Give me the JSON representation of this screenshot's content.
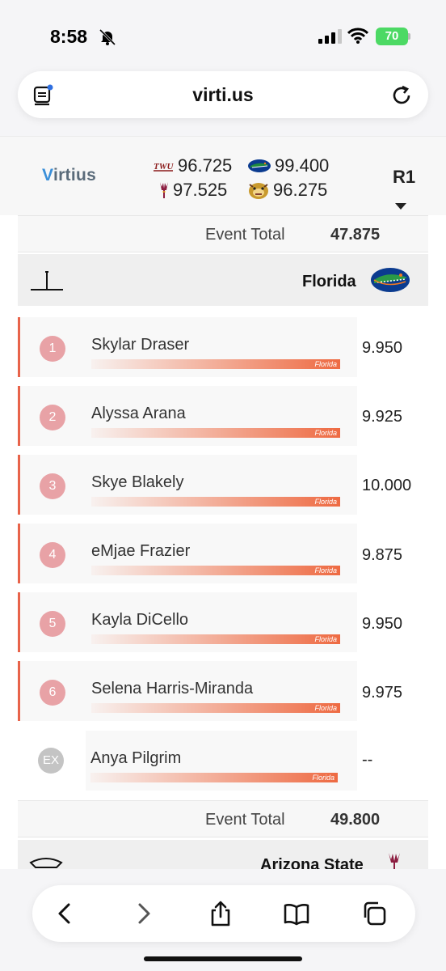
{
  "status": {
    "time": "8:58",
    "battery": "70"
  },
  "browser": {
    "url": "virti.us"
  },
  "scoreboard": {
    "brand_v": "V",
    "brand_rest": "irtius",
    "teams": [
      {
        "logo": "twu-logo",
        "score": "96.725"
      },
      {
        "logo": "florida-gator-logo",
        "score": "99.400"
      },
      {
        "logo": "arizona-state-pitchfork-logo",
        "score": "97.525"
      },
      {
        "logo": "bulldog-logo",
        "score": "96.275"
      }
    ],
    "round": "R1"
  },
  "event_total_top": {
    "label": "Event Total",
    "value": "47.875"
  },
  "team_section": {
    "apparatus_icon": "balance-beam-icon",
    "team_name": "Florida",
    "gymnasts": [
      {
        "order": "1",
        "name": "Skylar Draser",
        "team": "Florida",
        "score": "9.950"
      },
      {
        "order": "2",
        "name": "Alyssa Arana",
        "team": "Florida",
        "score": "9.925"
      },
      {
        "order": "3",
        "name": "Skye Blakely",
        "team": "Florida",
        "score": "10.000"
      },
      {
        "order": "4",
        "name": "eMjae Frazier",
        "team": "Florida",
        "score": "9.875"
      },
      {
        "order": "5",
        "name": "Kayla DiCello",
        "team": "Florida",
        "score": "9.950"
      },
      {
        "order": "6",
        "name": "Selena Harris-Miranda",
        "team": "Florida",
        "score": "9.975"
      }
    ],
    "exhibition": {
      "badge": "EX",
      "name": "Anya Pilgrim",
      "team": "Florida",
      "score": "--"
    }
  },
  "event_total_bottom": {
    "label": "Event Total",
    "value": "49.800"
  },
  "next_team": {
    "name": "Arizona State",
    "apparatus_icon": "vault-icon"
  },
  "colors": {
    "accent": "#ee6a42",
    "badge": "#e8a2a6",
    "brand_blue": "#3a8fd9"
  }
}
